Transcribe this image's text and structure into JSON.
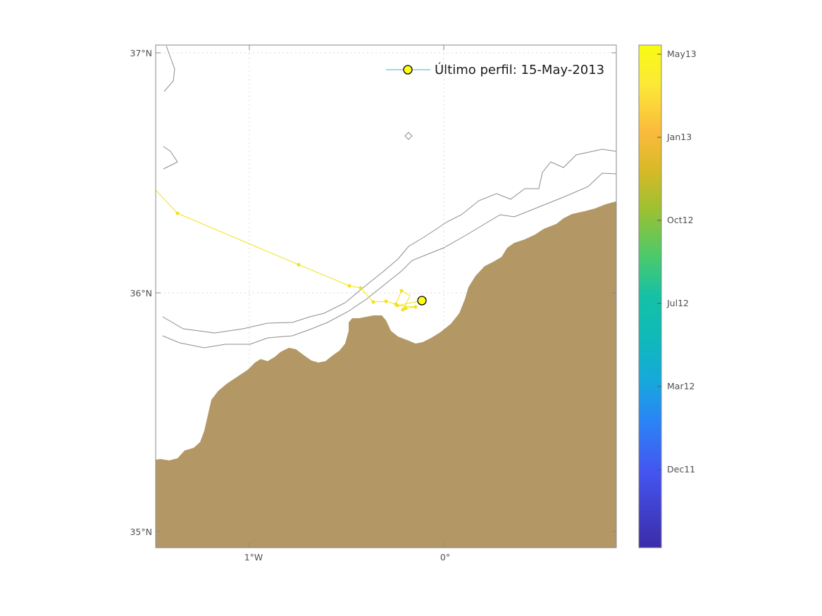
{
  "map": {
    "lat_ticks": [
      "37°N",
      "36°N",
      "35°N"
    ],
    "lon_ticks": [
      "1°W",
      "0°"
    ],
    "lat_range": [
      34.93,
      37.03
    ],
    "lon_range": [
      -1.52,
      0.9
    ],
    "land_color": "#b39866",
    "sea_color": "#ffffff",
    "isobath_color": "#8c8c8c",
    "grid": true
  },
  "legend": {
    "label": "Último perfil: 15-May-2013",
    "marker_color": "#ffff1a",
    "line_color": "#4aa8e0"
  },
  "colorbar": {
    "tick_labels": [
      "May13",
      "Jan13",
      "Oct12",
      "Jul12",
      "Mar12",
      "Dec11"
    ],
    "colors": [
      "#f9fb14",
      "#fbbb3c",
      "#d8b927",
      "#99c133",
      "#4cc96b",
      "#0fbab8",
      "#16a8dc",
      "#2b83f6",
      "#4455ef",
      "#3b2ca8"
    ]
  },
  "track": {
    "color": "#f2e21c",
    "last_profile": {
      "lon": -0.12,
      "lat": 35.97
    }
  }
}
